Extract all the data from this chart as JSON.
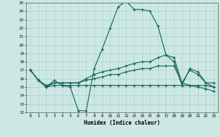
{
  "title": "",
  "xlabel": "Humidex (Indice chaleur)",
  "ylabel": "",
  "xlim": [
    -0.5,
    23.5
  ],
  "ylim": [
    12,
    25
  ],
  "yticks": [
    12,
    13,
    14,
    15,
    16,
    17,
    18,
    19,
    20,
    21,
    22,
    23,
    24,
    25
  ],
  "xticks": [
    0,
    1,
    2,
    3,
    4,
    5,
    6,
    7,
    8,
    9,
    10,
    11,
    12,
    13,
    14,
    15,
    16,
    17,
    18,
    19,
    20,
    21,
    22,
    23
  ],
  "bg_color": "#cde8e4",
  "grid_color": "#a8cfc9",
  "line_color": "#1a6b60",
  "series": [
    [
      17.0,
      15.8,
      15.0,
      15.8,
      15.2,
      15.0,
      12.2,
      12.2,
      17.2,
      19.5,
      22.0,
      24.5,
      25.2,
      24.2,
      24.2,
      24.0,
      22.2,
      18.8,
      18.0,
      15.2,
      17.2,
      16.8,
      15.5,
      15.5
    ],
    [
      17.0,
      15.8,
      15.0,
      15.5,
      15.5,
      15.5,
      15.5,
      16.0,
      16.5,
      16.8,
      17.0,
      17.2,
      17.5,
      17.8,
      18.0,
      18.0,
      18.5,
      18.8,
      18.5,
      15.5,
      17.0,
      16.5,
      15.5,
      15.0
    ],
    [
      17.0,
      15.8,
      15.2,
      15.5,
      15.5,
      15.5,
      15.5,
      15.8,
      16.0,
      16.2,
      16.5,
      16.5,
      16.8,
      17.0,
      17.2,
      17.2,
      17.5,
      17.5,
      17.5,
      15.5,
      15.2,
      15.0,
      14.8,
      14.5
    ],
    [
      17.0,
      15.8,
      15.0,
      15.2,
      15.2,
      15.2,
      15.2,
      15.2,
      15.2,
      15.2,
      15.2,
      15.2,
      15.2,
      15.2,
      15.2,
      15.2,
      15.2,
      15.2,
      15.2,
      15.2,
      15.2,
      15.2,
      15.2,
      15.0
    ]
  ]
}
